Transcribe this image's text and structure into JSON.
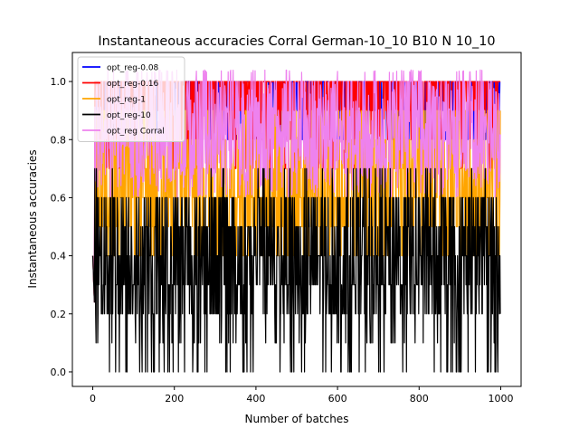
{
  "chart_data": {
    "type": "line",
    "title": "Instantaneous accuracies Corral German-10_10 B10 N 10_10",
    "xlabel": "Number of batches",
    "ylabel": "Instantaneous accuracies",
    "xlim": [
      -50,
      1050
    ],
    "ylim": [
      -0.05,
      1.1
    ],
    "xticks": [
      0,
      200,
      400,
      600,
      800,
      1000
    ],
    "xtick_labels": [
      "0",
      "200",
      "400",
      "600",
      "800",
      "1000"
    ],
    "yticks": [
      0.0,
      0.2,
      0.4,
      0.6,
      0.8,
      1.0
    ],
    "ytick_labels": [
      "0.0",
      "0.2",
      "0.4",
      "0.6",
      "0.8",
      "1.0"
    ],
    "grid": false,
    "legend_position": "top-left",
    "n_points": 1000,
    "series": [
      {
        "name": "opt_reg-0.08",
        "color": "#0000ff",
        "typical_low": 0.8,
        "typical_high": 1.0
      },
      {
        "name": "opt_reg-0.16",
        "color": "#ff0000",
        "typical_low": 0.7,
        "typical_high": 1.0
      },
      {
        "name": "opt_reg-1",
        "color": "#ffa500",
        "typical_low": 0.4,
        "typical_high": 0.9
      },
      {
        "name": "opt_reg-10",
        "color": "#000000",
        "typical_low": 0.0,
        "typical_high": 0.7
      },
      {
        "name": "opt_reg Corral",
        "color": "#ee82ee",
        "typical_low": 0.6,
        "typical_high": 1.0
      }
    ]
  }
}
